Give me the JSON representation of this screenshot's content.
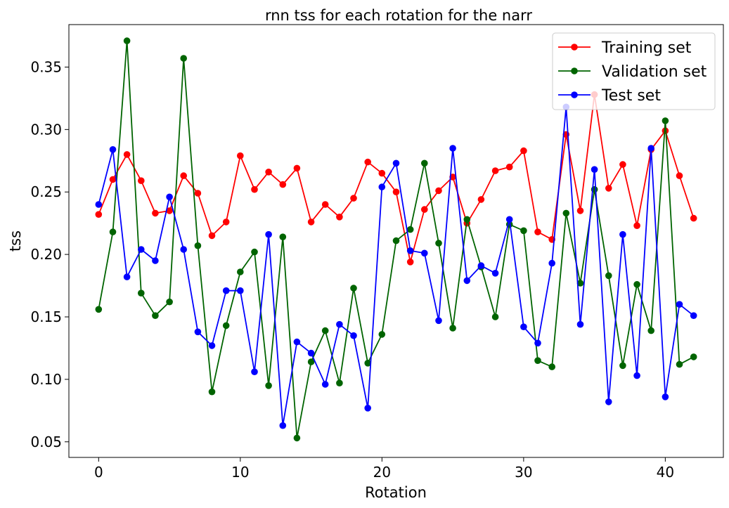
{
  "chart_data": {
    "type": "line",
    "title": "rnn tss for each rotation for the narr",
    "xlabel": "Rotation",
    "ylabel": "tss",
    "xlim": [
      -2.1,
      44.1
    ],
    "ylim": [
      0.0375,
      0.384
    ],
    "xticks": [
      0,
      10,
      20,
      30,
      40
    ],
    "xtick_labels": [
      "0",
      "10",
      "20",
      "30",
      "40"
    ],
    "yticks": [
      0.05,
      0.1,
      0.15,
      0.2,
      0.25,
      0.3,
      0.35
    ],
    "ytick_labels": [
      "0.05",
      "0.10",
      "0.15",
      "0.20",
      "0.25",
      "0.30",
      "0.35"
    ],
    "grid": false,
    "legend_position": "top-right",
    "x": [
      0,
      1,
      2,
      3,
      4,
      5,
      6,
      7,
      8,
      9,
      10,
      11,
      12,
      13,
      14,
      15,
      16,
      17,
      18,
      19,
      20,
      21,
      22,
      23,
      24,
      25,
      26,
      27,
      28,
      29,
      30,
      31,
      32,
      33,
      34,
      35,
      36,
      37,
      38,
      39,
      40,
      41,
      42
    ],
    "series": [
      {
        "name": "Training set",
        "color": "#ff0000",
        "values": [
          0.232,
          0.26,
          0.28,
          0.259,
          0.233,
          0.235,
          0.263,
          0.249,
          0.215,
          0.226,
          0.279,
          0.252,
          0.266,
          0.256,
          0.269,
          0.226,
          0.24,
          0.23,
          0.245,
          0.274,
          0.265,
          0.25,
          0.194,
          0.236,
          0.251,
          0.262,
          0.225,
          0.244,
          0.267,
          0.27,
          0.283,
          0.218,
          0.212,
          0.296,
          0.235,
          0.328,
          0.253,
          0.272,
          0.223,
          0.284,
          0.299,
          0.263,
          0.229
        ]
      },
      {
        "name": "Validation set",
        "color": "#006400",
        "values": [
          0.156,
          0.218,
          0.371,
          0.169,
          0.151,
          0.162,
          0.357,
          0.207,
          0.09,
          0.143,
          0.186,
          0.202,
          0.095,
          0.214,
          0.053,
          0.114,
          0.139,
          0.097,
          0.173,
          0.113,
          0.136,
          0.211,
          0.22,
          0.273,
          0.209,
          0.141,
          0.228,
          0.19,
          0.15,
          0.224,
          0.219,
          0.115,
          0.11,
          0.233,
          0.177,
          0.252,
          0.183,
          0.111,
          0.176,
          0.139,
          0.307,
          0.112,
          0.118
        ]
      },
      {
        "name": "Test set",
        "color": "#0000ff",
        "values": [
          0.24,
          0.284,
          0.182,
          0.204,
          0.195,
          0.246,
          0.204,
          0.138,
          0.127,
          0.171,
          0.171,
          0.106,
          0.216,
          0.063,
          0.13,
          0.121,
          0.096,
          0.144,
          0.135,
          0.077,
          0.254,
          0.273,
          0.203,
          0.201,
          0.147,
          0.285,
          0.179,
          0.191,
          0.185,
          0.228,
          0.142,
          0.129,
          0.193,
          0.318,
          0.144,
          0.268,
          0.082,
          0.216,
          0.103,
          0.285,
          0.086,
          0.16,
          0.151
        ]
      }
    ]
  }
}
